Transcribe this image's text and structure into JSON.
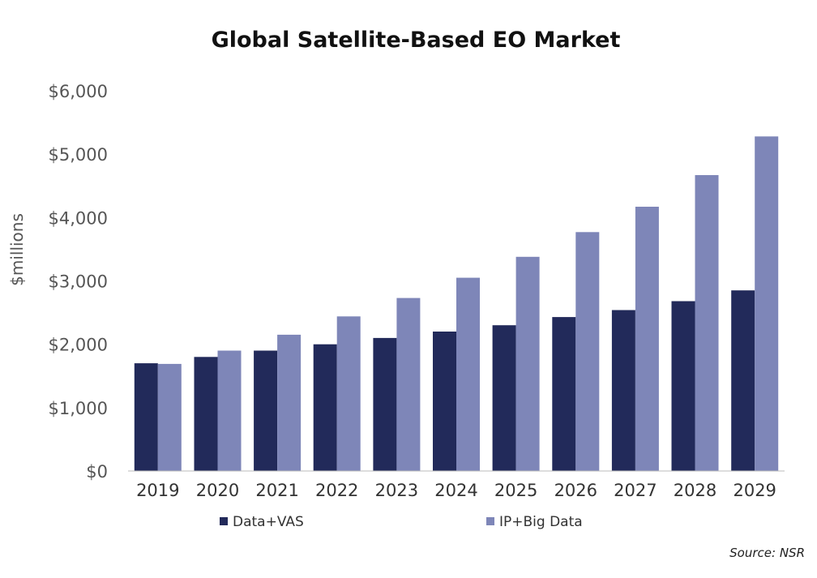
{
  "chart_data": {
    "type": "bar",
    "title": "Global Satellite-Based EO Market",
    "xlabel": "",
    "ylabel": "$millions",
    "categories": [
      "2019",
      "2020",
      "2021",
      "2022",
      "2023",
      "2024",
      "2025",
      "2026",
      "2027",
      "2028",
      "2029"
    ],
    "series": [
      {
        "name": "Data+VAS",
        "color": "#222a5a",
        "values": [
          1700,
          1800,
          1900,
          2000,
          2100,
          2200,
          2300,
          2430,
          2540,
          2680,
          2850
        ]
      },
      {
        "name": "IP+Big Data",
        "color": "#7e86b8",
        "values": [
          1690,
          1900,
          2150,
          2440,
          2730,
          3050,
          3380,
          3770,
          4170,
          4670,
          5280
        ]
      }
    ],
    "ylim": [
      0,
      6000
    ],
    "yticks": [
      0,
      1000,
      2000,
      3000,
      4000,
      5000,
      6000
    ],
    "ytick_labels": [
      "$0",
      "$1,000",
      "$2,000",
      "$3,000",
      "$4,000",
      "$5,000",
      "$6,000"
    ],
    "grid": false,
    "legend_position": "bottom",
    "source": "Source: NSR"
  }
}
